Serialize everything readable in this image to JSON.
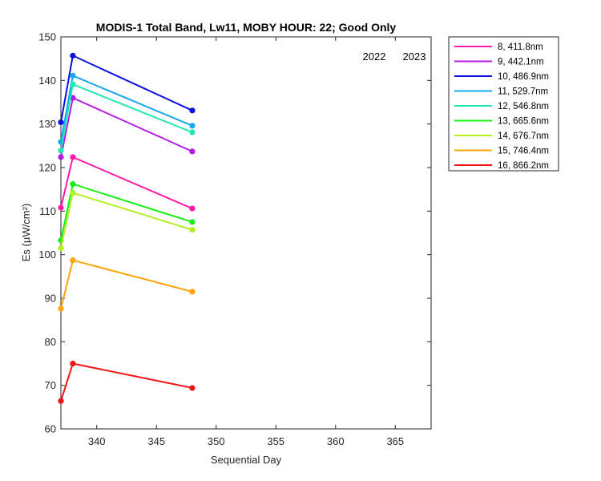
{
  "chart_data": {
    "type": "line",
    "title": "MODIS-1 Total Band,  Lw11, MOBY HOUR: 22;  Good Only",
    "xlabel": "Sequential Day",
    "ylabel": "Es (µW/cm²)",
    "xlim": [
      337,
      368
    ],
    "ylim": [
      60,
      150
    ],
    "xticks": [
      340,
      345,
      350,
      355,
      360,
      365
    ],
    "yticks": [
      60,
      70,
      80,
      90,
      100,
      110,
      120,
      130,
      140,
      150
    ],
    "grid": false,
    "legend_position": "outside-top-right",
    "year_labels": [
      "2022",
      "2023"
    ],
    "x": [
      337,
      338,
      348
    ],
    "series": [
      {
        "name": "8, 411.8nm",
        "color": "#ff1aa8",
        "values": [
          110.8,
          122.4,
          110.6
        ]
      },
      {
        "name": "9, 442.1nm",
        "color": "#b21ee6",
        "values": [
          122.4,
          136.0,
          123.7
        ]
      },
      {
        "name": "10, 486.9nm",
        "color": "#0a10e0",
        "values": [
          130.4,
          145.7,
          133.1
        ]
      },
      {
        "name": "11, 529.7nm",
        "color": "#17a8f0",
        "values": [
          125.9,
          141.1,
          129.6
        ]
      },
      {
        "name": "12, 546.8nm",
        "color": "#1ee8b0",
        "values": [
          123.9,
          139.1,
          128.1
        ]
      },
      {
        "name": "13, 665.6nm",
        "color": "#14f014",
        "values": [
          103.3,
          116.2,
          107.5
        ]
      },
      {
        "name": "14, 676.7nm",
        "color": "#b4f01e",
        "values": [
          101.5,
          114.2,
          105.7
        ]
      },
      {
        "name": "15, 746.4nm",
        "color": "#ffa60a",
        "values": [
          87.6,
          98.7,
          91.5
        ]
      },
      {
        "name": "16, 866.2nm",
        "color": "#f01414",
        "values": [
          66.4,
          75.0,
          69.4
        ]
      }
    ]
  }
}
